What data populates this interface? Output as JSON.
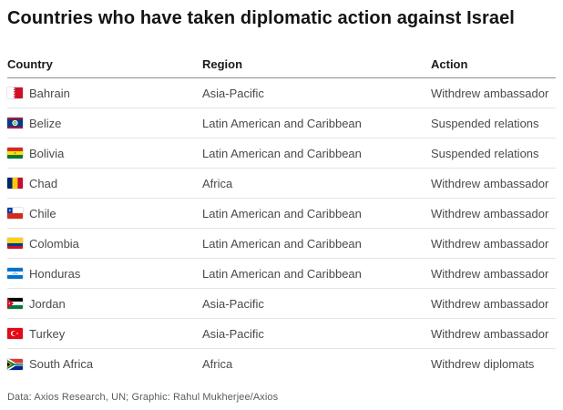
{
  "chart_data": {
    "type": "table",
    "title": "Countries who have taken diplomatic action against Israel",
    "columns": [
      "Country",
      "Region",
      "Action"
    ],
    "rows": [
      {
        "country": "Bahrain",
        "flag": "flag-bahrain",
        "region": "Asia-Pacific",
        "action": "Withdrew ambassador"
      },
      {
        "country": "Belize",
        "flag": "flag-belize",
        "region": "Latin American and Caribbean",
        "action": "Suspended relations"
      },
      {
        "country": "Bolivia",
        "flag": "flag-bolivia",
        "region": "Latin American and Caribbean",
        "action": "Suspended relations"
      },
      {
        "country": "Chad",
        "flag": "flag-chad",
        "region": "Africa",
        "action": "Withdrew ambassador"
      },
      {
        "country": "Chile",
        "flag": "flag-chile",
        "region": "Latin American and Caribbean",
        "action": "Withdrew ambassador"
      },
      {
        "country": "Colombia",
        "flag": "flag-colombia",
        "region": "Latin American and Caribbean",
        "action": "Withdrew ambassador"
      },
      {
        "country": "Honduras",
        "flag": "flag-honduras",
        "region": "Latin American and Caribbean",
        "action": "Withdrew ambassador"
      },
      {
        "country": "Jordan",
        "flag": "flag-jordan",
        "region": "Asia-Pacific",
        "action": "Withdrew ambassador"
      },
      {
        "country": "Turkey",
        "flag": "flag-turkey",
        "region": "Asia-Pacific",
        "action": "Withdrew ambassador"
      },
      {
        "country": "South Africa",
        "flag": "flag-south-africa",
        "region": "Africa",
        "action": "Withdrew diplomats"
      }
    ]
  },
  "footer": {
    "credit": "Data: Axios Research, UN; Graphic: Rahul Mukherjee/Axios"
  },
  "colors": {
    "title_text": "#141414",
    "header_text": "#1a1a1a",
    "row_text": "#4a4a4a",
    "footer_text": "#5c5c5c",
    "header_rule": "#8f8f8f",
    "row_rule": "#e4e4e4",
    "background": "#ffffff"
  }
}
